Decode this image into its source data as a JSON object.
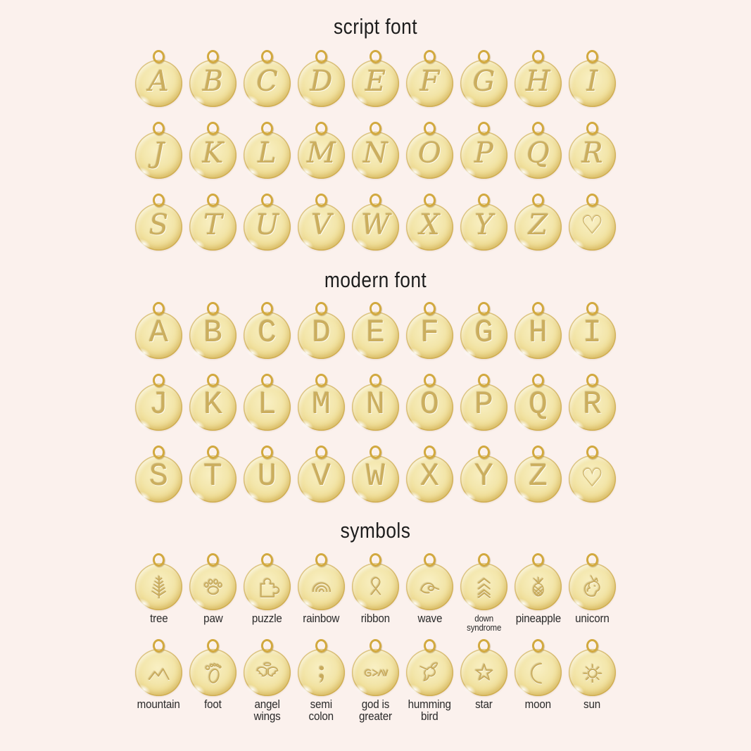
{
  "page": {
    "background": "#fbf1ed"
  },
  "palette": {
    "gold_light": "#f9f0c4",
    "gold": "#f3e6ab",
    "gold_deep": "#e7cd74",
    "gold_rim": "#c9a23a",
    "engrave": "#cbae5e",
    "bail_gold": "#d2a93f",
    "title_color": "#1d1d1d",
    "label_color": "#2a2a2a"
  },
  "sections": [
    {
      "id": "script-font",
      "title": "script font",
      "letter_style": "script",
      "rows": [
        [
          "A",
          "B",
          "C",
          "D",
          "E",
          "F",
          "G",
          "H",
          "I"
        ],
        [
          "J",
          "K",
          "L",
          "M",
          "N",
          "O",
          "P",
          "Q",
          "R"
        ],
        [
          "S",
          "T",
          "U",
          "V",
          "W",
          "X",
          "Y",
          "Z",
          "♡"
        ]
      ]
    },
    {
      "id": "modern-font",
      "title": "modern font",
      "letter_style": "modern",
      "rows": [
        [
          "A",
          "B",
          "C",
          "D",
          "E",
          "F",
          "G",
          "H",
          "I"
        ],
        [
          "J",
          "K",
          "L",
          "M",
          "N",
          "O",
          "P",
          "Q",
          "R"
        ],
        [
          "S",
          "T",
          "U",
          "V",
          "W",
          "X",
          "Y",
          "Z",
          "♡"
        ]
      ]
    },
    {
      "id": "symbols",
      "title": "symbols",
      "rows": [
        [
          {
            "icon": "tree",
            "label": [
              "tree"
            ]
          },
          {
            "icon": "paw",
            "label": [
              "paw"
            ]
          },
          {
            "icon": "puzzle",
            "label": [
              "puzzle"
            ]
          },
          {
            "icon": "rainbow",
            "label": [
              "rainbow"
            ]
          },
          {
            "icon": "ribbon",
            "label": [
              "ribbon"
            ]
          },
          {
            "icon": "wave",
            "label": [
              "wave"
            ]
          },
          {
            "icon": "down-syndrome",
            "label": [
              "down",
              "syndrome"
            ],
            "small": true
          },
          {
            "icon": "pineapple",
            "label": [
              "pineapple"
            ]
          },
          {
            "icon": "unicorn",
            "label": [
              "unicorn"
            ]
          }
        ],
        [
          {
            "icon": "mountain",
            "label": [
              "mountain"
            ]
          },
          {
            "icon": "foot",
            "label": [
              "foot"
            ]
          },
          {
            "icon": "angel-wings",
            "label": [
              "angel",
              "wings"
            ]
          },
          {
            "icon": "semi-colon",
            "label": [
              "semi",
              "colon"
            ]
          },
          {
            "icon": "god-is-greater",
            "label": [
              "god is",
              "greater"
            ]
          },
          {
            "icon": "humming-bird",
            "label": [
              "humming",
              "bird"
            ]
          },
          {
            "icon": "star",
            "label": [
              "star"
            ]
          },
          {
            "icon": "moon",
            "label": [
              "moon"
            ]
          },
          {
            "icon": "sun",
            "label": [
              "sun"
            ]
          }
        ]
      ]
    }
  ]
}
